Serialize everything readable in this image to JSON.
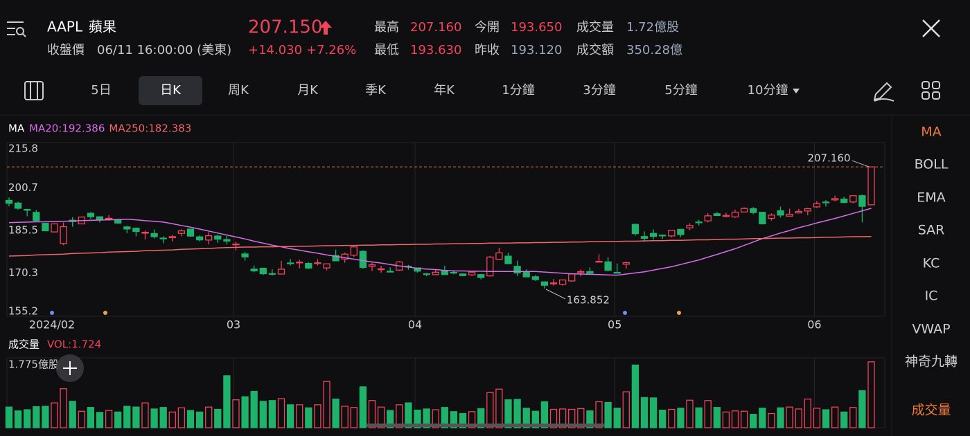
{
  "header": {
    "symbol": "AAPL",
    "name": "蘋果",
    "status": "收盤價",
    "datetime": "06/11 16:00:00 (美東)",
    "price": "207.150",
    "change": "+14.030",
    "change_pct": "+7.26%",
    "stats": [
      {
        "label": "最高",
        "value": "207.160",
        "color": "#f0445c"
      },
      {
        "label": "最低",
        "value": "193.630",
        "color": "#f0445c"
      },
      {
        "label": "今開",
        "value": "193.650",
        "color": "#f0445c"
      },
      {
        "label": "昨收",
        "value": "193.120",
        "color": "#9aa6bb"
      },
      {
        "label": "成交量",
        "value": "1.72億股",
        "color": "#9aa6bb"
      },
      {
        "label": "成交額",
        "value": "350.28億",
        "color": "#9aa6bb"
      }
    ]
  },
  "tabs": {
    "items": [
      "5日",
      "日K",
      "周K",
      "月K",
      "季K",
      "年K",
      "1分鐘",
      "3分鐘",
      "5分鐘",
      "10分鐘"
    ],
    "active": "日K"
  },
  "sidebar": {
    "items": [
      "MA",
      "BOLL",
      "EMA",
      "SAR",
      "KC",
      "IC",
      "VWAP",
      "神奇九轉",
      "成交量"
    ],
    "active": [
      "MA",
      "成交量"
    ]
  },
  "chart_data": {
    "type": "candlestick",
    "indicator": "MA",
    "ylim": [
      155.2,
      215.8
    ],
    "yticks": [
      215.8,
      200.7,
      185.5,
      170.3,
      155.2
    ],
    "grid": false,
    "up_color": "#f0445c",
    "down_color": "#1fb26b",
    "high_label": "207.160",
    "low_label": "163.852",
    "categories": [
      null,
      null,
      null,
      null,
      null,
      "2024/02",
      null,
      null,
      null,
      null,
      null,
      null,
      null,
      null,
      null,
      null,
      null,
      null,
      null,
      null,
      null,
      null,
      null,
      null,
      null,
      "03",
      null,
      null,
      null,
      null,
      null,
      null,
      null,
      null,
      null,
      null,
      null,
      null,
      null,
      null,
      null,
      null,
      null,
      null,
      null,
      "04",
      null,
      null,
      null,
      null,
      null,
      null,
      null,
      null,
      null,
      null,
      null,
      null,
      null,
      null,
      null,
      null,
      null,
      null,
      null,
      null,
      null,
      "05",
      null,
      null,
      null,
      null,
      null,
      null,
      null,
      null,
      null,
      null,
      null,
      null,
      null,
      null,
      null,
      null,
      null,
      null,
      null,
      null,
      null,
      "06",
      null,
      null,
      null,
      null,
      null,
      null
    ],
    "open": [
      195.22,
      194.27,
      192.01,
      190.94,
      187.04,
      183.99,
      179.86,
      188.15,
      186.86,
      190.64,
      189.39,
      188.65,
      188.42,
      185.77,
      185.32,
      183.55,
      183.42,
      181.79,
      181.94,
      183.48,
      185.01,
      182.24,
      181.1,
      182.51,
      181.27,
      179.55,
      176.15,
      170.76,
      171.06,
      169.15,
      169.0,
      172.94,
      173.15,
      172.77,
      172.91,
      171.17,
      175.57,
      174.34,
      175.72,
      177.05,
      171.76,
      170.57,
      170.0,
      170.41,
      171.75,
      171.19,
      169.08,
      168.79,
      170.29,
      169.59,
      169.03,
      168.7,
      168.8,
      168.34,
      174.26,
      175.36,
      171.75,
      169.61,
      168.03,
      166.21,
      165.52,
      165.35,
      166.54,
      169.53,
      169.88,
      173.37,
      173.33,
      169.58,
      172.51,
      186.65,
      182.35,
      183.45,
      182.85,
      182.56,
      184.9,
      185.44,
      187.51,
      187.91,
      190.47,
      189.51,
      189.33,
      191.09,
      192.27,
      190.98,
      188.82,
      191.51,
      189.61,
      190.76,
      191.44,
      192.9,
      194.64,
      195.4,
      195.69,
      194.65,
      196.9,
      193.65
    ],
    "high": [
      196.27,
      194.76,
      192.2,
      191.8,
      187.1,
      186.95,
      187.33,
      189.25,
      189.31,
      191.05,
      189.54,
      189.99,
      188.67,
      186.21,
      185.53,
      184.49,
      184.85,
      182.43,
      182.89,
      184.96,
      185.04,
      182.76,
      183.92,
      183.12,
      182.57,
      180.53,
      176.9,
      172.04,
      171.24,
      170.73,
      173.7,
      174.38,
      174.03,
      173.19,
      174.31,
      172.62,
      177.71,
      176.61,
      178.67,
      177.49,
      173.05,
      171.94,
      171.42,
      173.6,
      172.23,
      171.25,
      169.34,
      170.68,
      171.92,
      170.39,
      169.2,
      170.08,
      169.09,
      175.46,
      178.36,
      176.63,
      173.76,
      170.65,
      168.64,
      166.4,
      167.26,
      167.05,
      169.3,
      170.61,
      171.34,
      176.03,
      174.99,
      172.71,
      173.42,
      187.0,
      184.2,
      184.9,
      183.07,
      184.66,
      185.09,
      187.1,
      188.3,
      190.65,
      191.1,
      190.81,
      191.92,
      192.73,
      192.82,
      191.0,
      190.58,
      193.0,
      192.25,
      192.18,
      192.57,
      194.99,
      195.32,
      196.9,
      196.5,
      196.94,
      197.3,
      207.16
    ],
    "low": [
      193.11,
      191.94,
      189.58,
      187.47,
      184.35,
      183.82,
      179.25,
      185.84,
      186.77,
      188.61,
      187.35,
      188.0,
      186.79,
      183.51,
      182.44,
      181.35,
      181.67,
      180.0,
      180.66,
      182.46,
      182.23,
      180.65,
      179.56,
      180.13,
      179.53,
      177.38,
      173.79,
      169.62,
      168.68,
      168.49,
      168.94,
      172.05,
      171.01,
      170.76,
      172.05,
      170.29,
      173.52,
      173.03,
      175.09,
      170.84,
      170.06,
      169.45,
      169.58,
      170.11,
      170.51,
      169.48,
      168.23,
      168.58,
      168.82,
      168.95,
      168.24,
      168.35,
      167.11,
      168.16,
      174.21,
      172.5,
      168.27,
      168.0,
      166.55,
      163.852,
      164.77,
      164.92,
      166.21,
      168.15,
      169.18,
      173.1,
      170.0,
      169.11,
      170.89,
      182.66,
      180.42,
      181.32,
      181.45,
      182.11,
      182.13,
      184.62,
      186.29,
      187.37,
      189.66,
      189.18,
      189.01,
      190.92,
      190.27,
      186.63,
      188.04,
      189.1,
      189.51,
      190.63,
      189.91,
      192.52,
      193.03,
      194.87,
      194.17,
      194.14,
      187.43,
      193.63
    ],
    "close": [
      194.17,
      192.42,
      191.73,
      188.04,
      184.4,
      186.86,
      185.85,
      187.68,
      189.3,
      189.41,
      188.32,
      188.85,
      187.15,
      185.04,
      184.15,
      183.86,
      182.31,
      181.56,
      182.32,
      184.37,
      182.52,
      181.16,
      182.63,
      181.42,
      180.75,
      179.66,
      175.1,
      170.12,
      169.12,
      169.0,
      170.73,
      172.75,
      173.23,
      171.13,
      173.0,
      172.62,
      173.72,
      176.08,
      178.67,
      171.37,
      172.28,
      170.85,
      169.71,
      173.31,
      171.48,
      170.03,
      168.84,
      169.65,
      168.82,
      169.58,
      168.45,
      169.67,
      167.78,
      175.04,
      176.55,
      172.69,
      169.38,
      168.0,
      167.04,
      165.0,
      165.84,
      166.9,
      169.02,
      169.89,
      169.3,
      173.5,
      170.33,
      169.3,
      173.03,
      183.38,
      181.71,
      182.4,
      182.74,
      184.57,
      183.05,
      186.28,
      187.43,
      189.72,
      189.84,
      189.87,
      191.04,
      192.35,
      190.9,
      186.88,
      189.98,
      189.99,
      190.29,
      191.29,
      192.25,
      194.03,
      194.35,
      195.87,
      194.48,
      196.89,
      193.12,
      207.15
    ],
    "series": [
      {
        "name": "MA20",
        "label": "MA20:192.386",
        "color": "#d66fe6",
        "values": [
          187.3,
          187.4,
          187.5,
          187.6,
          187.6,
          187.7,
          187.8,
          187.9,
          188.0,
          188.1,
          188.2,
          188.3,
          188.4,
          188.5,
          188.3,
          188.0,
          187.8,
          187.5,
          186.9,
          186.3,
          185.7,
          185.0,
          184.3,
          183.6,
          182.9,
          182.2,
          181.5,
          180.7,
          180.0,
          179.3,
          178.7,
          178.0,
          177.5,
          176.9,
          176.4,
          175.8,
          175.3,
          174.8,
          174.3,
          173.8,
          173.3,
          172.9,
          172.4,
          171.9,
          171.5,
          171.0,
          170.8,
          170.6,
          170.3,
          170.1,
          170.1,
          170.0,
          170.0,
          169.9,
          169.9,
          169.9,
          169.9,
          169.9,
          169.9,
          169.7,
          169.5,
          169.3,
          169.1,
          169.0,
          168.9,
          168.8,
          168.7,
          168.6,
          169.0,
          169.4,
          169.8,
          170.4,
          171.0,
          171.6,
          172.4,
          173.2,
          174.0,
          175.0,
          176.0,
          177.0,
          178.0,
          179.2,
          180.4,
          181.6,
          182.6,
          183.6,
          184.5,
          185.5,
          186.3,
          187.2,
          188.0,
          188.8,
          189.7,
          190.6,
          191.5,
          192.386
        ]
      },
      {
        "name": "MA250",
        "label": "MA250:182.383",
        "color": "#f0686a",
        "values": [
          175.4,
          175.5,
          175.6,
          175.8,
          175.9,
          176.0,
          176.1,
          176.3,
          176.4,
          176.5,
          176.6,
          176.8,
          176.9,
          177.0,
          177.1,
          177.3,
          177.4,
          177.5,
          177.6,
          177.8,
          177.9,
          178.0,
          178.1,
          178.3,
          178.4,
          178.5,
          178.6,
          178.6,
          178.7,
          178.7,
          178.8,
          178.8,
          178.9,
          178.9,
          179.0,
          179.1,
          179.1,
          179.2,
          179.2,
          179.3,
          179.3,
          179.4,
          179.4,
          179.5,
          179.5,
          179.6,
          179.6,
          179.7,
          179.7,
          179.8,
          179.8,
          179.9,
          179.9,
          180.0,
          180.0,
          180.0,
          180.1,
          180.1,
          180.2,
          180.2,
          180.3,
          180.3,
          180.4,
          180.4,
          180.5,
          180.5,
          180.6,
          180.6,
          180.7,
          180.7,
          180.8,
          180.9,
          180.9,
          181.0,
          181.0,
          181.1,
          181.2,
          181.2,
          181.3,
          181.4,
          181.4,
          181.5,
          181.6,
          181.6,
          181.7,
          181.8,
          181.8,
          181.9,
          181.9,
          182.0,
          182.1,
          182.1,
          182.2,
          182.3,
          182.3,
          182.383
        ]
      }
    ],
    "volume": {
      "title": "成交量",
      "label": "VOL:1.724",
      "ylim": [
        0,
        1.775
      ],
      "yticks": [
        {
          "value": 1.775,
          "label": "1.775億股"
        }
      ],
      "values": [
        0.54,
        0.44,
        0.47,
        0.55,
        0.56,
        0.65,
        1.02,
        0.69,
        0.43,
        0.53,
        0.4,
        0.45,
        0.41,
        0.56,
        0.54,
        0.65,
        0.49,
        0.53,
        0.41,
        0.52,
        0.45,
        0.41,
        0.54,
        0.48,
        1.36,
        0.73,
        0.81,
        0.95,
        0.69,
        0.71,
        0.76,
        0.6,
        0.6,
        0.52,
        0.6,
        1.21,
        0.75,
        0.56,
        0.53,
        1.07,
        0.71,
        0.54,
        0.45,
        0.6,
        0.65,
        0.46,
        0.49,
        0.47,
        0.53,
        0.42,
        0.37,
        0.42,
        0.5,
        0.92,
        1.01,
        0.73,
        0.74,
        0.51,
        0.43,
        0.68,
        0.48,
        0.49,
        0.48,
        0.5,
        0.44,
        0.68,
        0.66,
        0.51,
        0.94,
        1.64,
        0.79,
        0.78,
        0.46,
        0.48,
        0.51,
        0.72,
        0.52,
        0.71,
        0.53,
        0.41,
        0.44,
        0.43,
        0.35,
        0.51,
        0.37,
        0.52,
        0.54,
        0.49,
        0.75,
        0.51,
        0.47,
        0.54,
        0.41,
        0.53,
        0.97,
        1.724
      ]
    }
  }
}
